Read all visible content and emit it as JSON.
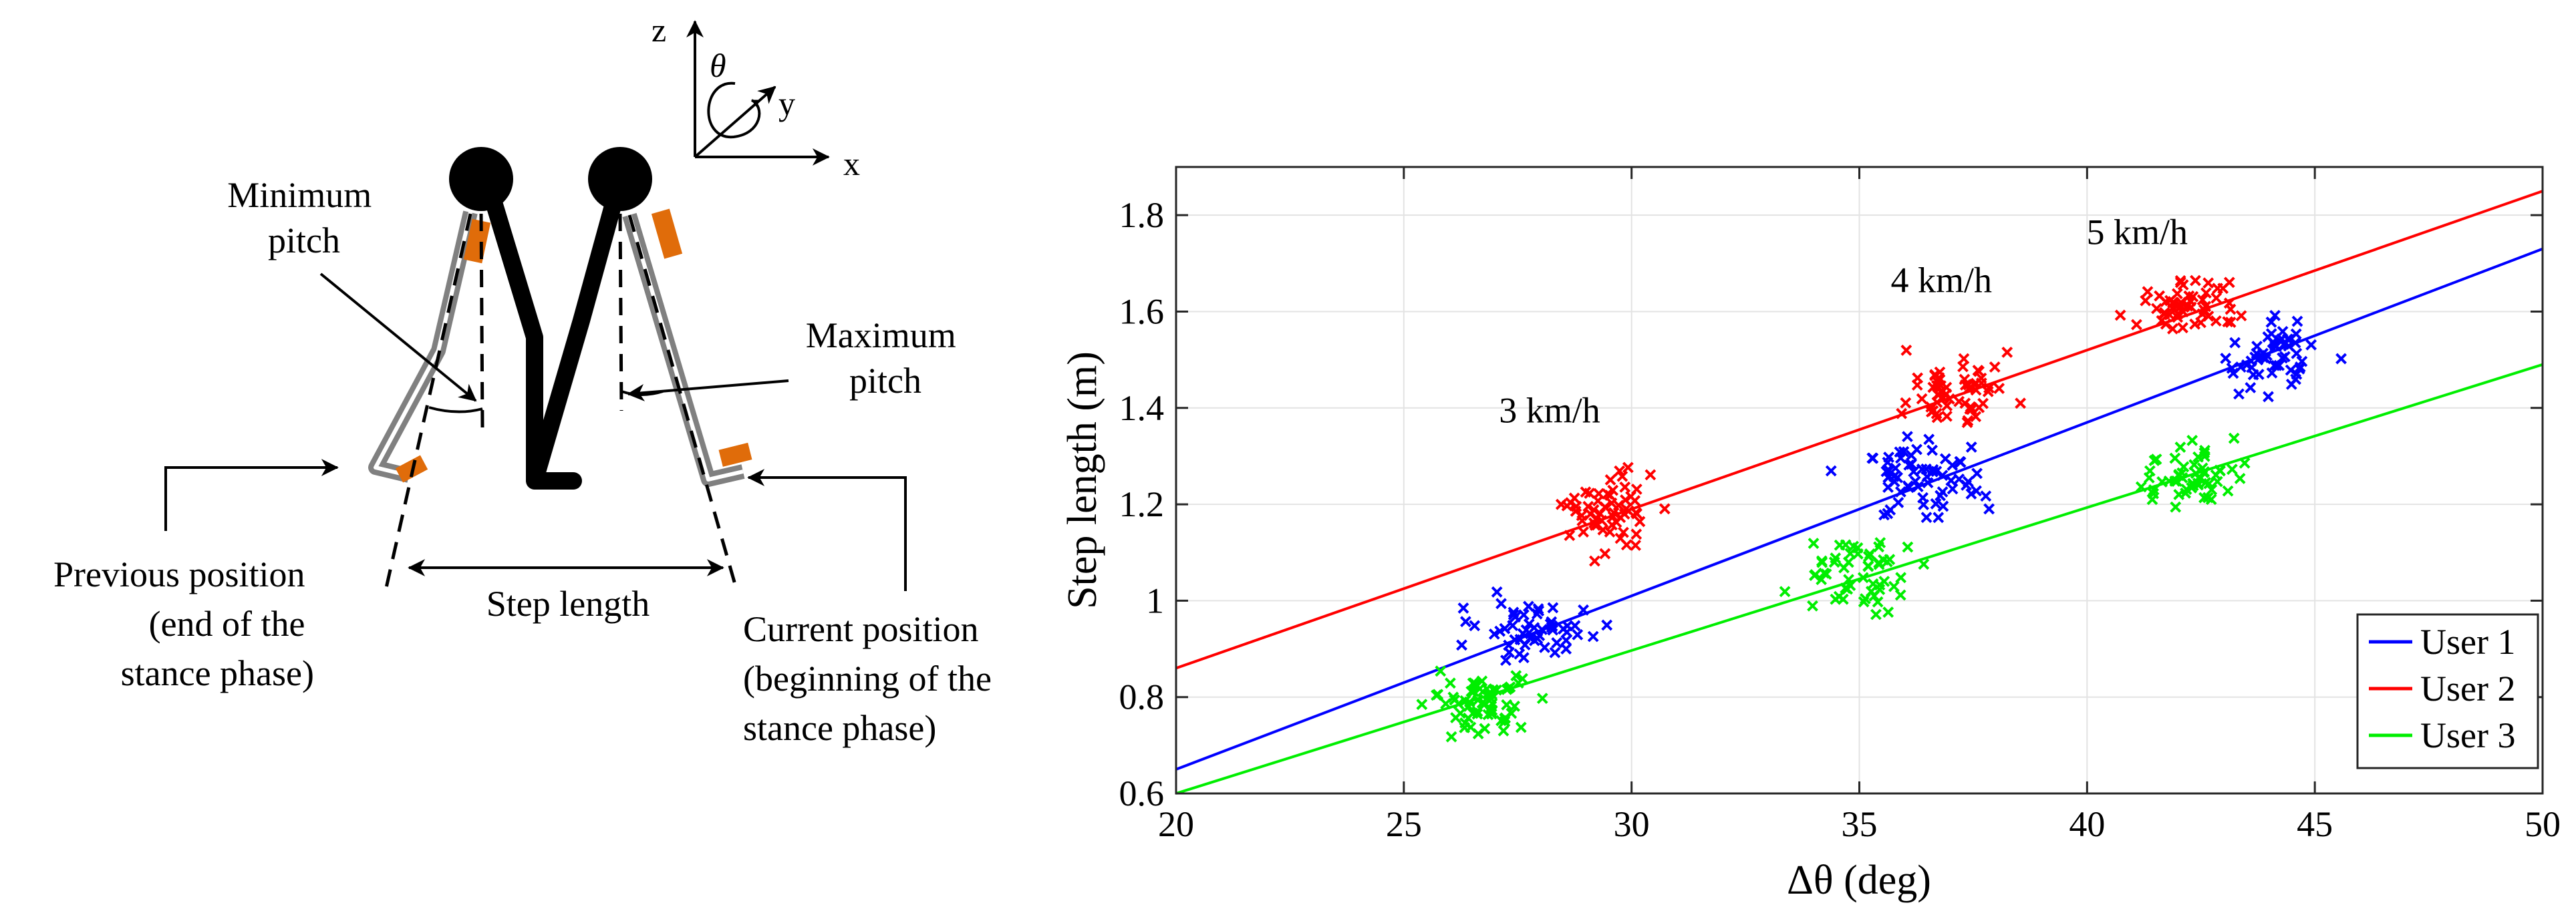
{
  "diagram": {
    "axes": {
      "z": "z",
      "y": "y",
      "x": "x",
      "theta": "θ"
    },
    "labels": {
      "minimum_pitch": [
        "Minimum",
        "pitch"
      ],
      "maximum_pitch": [
        "Maximum",
        "pitch"
      ],
      "previous_position": [
        "Previous position",
        "(end of the",
        "stance phase)"
      ],
      "step_length": "Step length",
      "current_position": [
        "Current position",
        "(beginning of the",
        "stance phase)"
      ]
    },
    "colors": {
      "leg": "#000000",
      "shank_outline": "#808080",
      "sensor": "#e06c0a"
    }
  },
  "chart_data": {
    "type": "scatter",
    "title": "",
    "xlabel": "Δθ (deg)",
    "ylabel": "Step length (m)",
    "xlim": [
      20,
      50
    ],
    "ylim": [
      0.6,
      1.9
    ],
    "xticks": [
      20,
      25,
      30,
      35,
      40,
      45,
      50
    ],
    "yticks": [
      0.6,
      0.8,
      1,
      1.2,
      1.4,
      1.6,
      1.8
    ],
    "xtick_labels": [
      "20",
      "25",
      "30",
      "35",
      "40",
      "45",
      "50"
    ],
    "ytick_labels": [
      "0.6",
      "0.8",
      "1",
      "1.2",
      "1.4",
      "1.6",
      "1.8"
    ],
    "grid": true,
    "legend_position": "bottom-right",
    "annotations": [
      {
        "text": "3 km/h",
        "x": 28.2,
        "y": 1.37
      },
      {
        "text": "4 km/h",
        "x": 36.8,
        "y": 1.64
      },
      {
        "text": "5 km/h",
        "x": 41.1,
        "y": 1.74
      }
    ],
    "series": [
      {
        "name": "User 1",
        "color": "#0000ff",
        "fit": {
          "x": [
            20,
            50
          ],
          "y": [
            0.65,
            1.73
          ]
        },
        "clusters": [
          {
            "cx": 27.9,
            "cy": 0.94,
            "sx": 0.8,
            "sy": 0.05,
            "n": 55
          },
          {
            "cx": 36.4,
            "cy": 1.26,
            "sx": 1.0,
            "sy": 0.06,
            "n": 65
          },
          {
            "cx": 44.0,
            "cy": 1.51,
            "sx": 0.7,
            "sy": 0.05,
            "n": 55
          }
        ]
      },
      {
        "name": "User 2",
        "color": "#ff0000",
        "fit": {
          "x": [
            20,
            50
          ],
          "y": [
            0.86,
            1.85
          ]
        },
        "clusters": [
          {
            "cx": 29.5,
            "cy": 1.18,
            "sx": 0.8,
            "sy": 0.05,
            "n": 60
          },
          {
            "cx": 37.0,
            "cy": 1.43,
            "sx": 0.8,
            "sy": 0.05,
            "n": 60
          },
          {
            "cx": 42.2,
            "cy": 1.61,
            "sx": 0.7,
            "sy": 0.04,
            "n": 55
          }
        ]
      },
      {
        "name": "User 3",
        "color": "#00ee00",
        "fit": {
          "x": [
            20,
            50
          ],
          "y": [
            0.6,
            1.49
          ]
        },
        "clusters": [
          {
            "cx": 26.8,
            "cy": 0.79,
            "sx": 0.8,
            "sy": 0.04,
            "n": 65
          },
          {
            "cx": 35.0,
            "cy": 1.05,
            "sx": 0.8,
            "sy": 0.05,
            "n": 55
          },
          {
            "cx": 42.3,
            "cy": 1.26,
            "sx": 0.7,
            "sy": 0.05,
            "n": 55
          }
        ]
      }
    ]
  }
}
